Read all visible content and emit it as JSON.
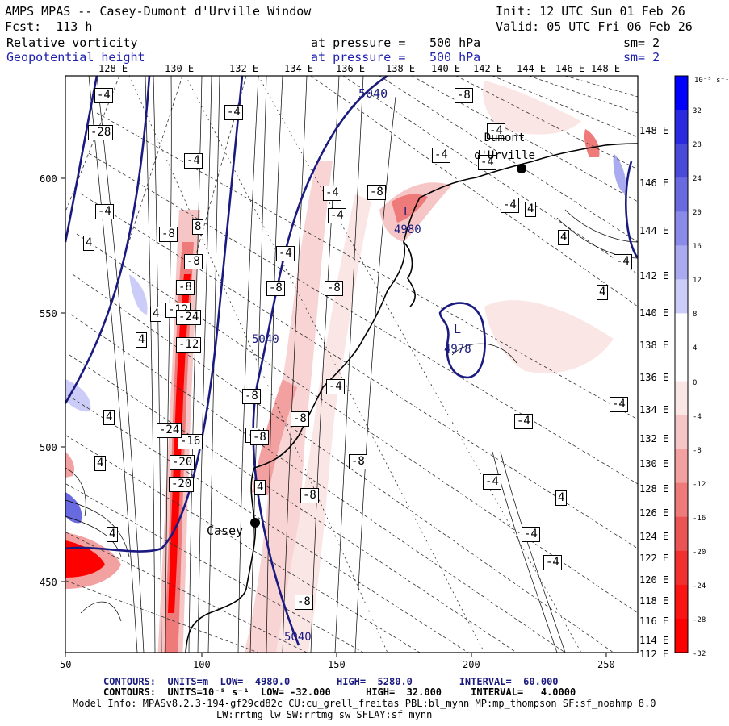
{
  "header": {
    "title": "AMPS MPAS -- Casey-Dumont d'Urville Window",
    "init": "Init: 12 UTC Sun 01 Feb 26",
    "fcst": "Fcst:  113 h",
    "valid": "Valid: 05 UTC Fri 06 Feb 26",
    "field1": {
      "name": "Relative vorticity",
      "pressure_label": "at pressure =",
      "pressure_value": "500 hPa",
      "sm": "sm= 2"
    },
    "field2": {
      "name": "Geopotential height",
      "pressure_label": "at pressure =",
      "pressure_value": "500 hPa",
      "sm": "sm= 2"
    }
  },
  "map": {
    "top_longitudes": [
      "128 E",
      "130 E",
      "132 E",
      "134 E",
      "136 E",
      "138 E",
      "140 E",
      "142 E",
      "144 E",
      "146 E",
      "148 E"
    ],
    "right_longitudes": [
      "148 E",
      "146 E",
      "144 E",
      "142 E",
      "140 E",
      "138 E",
      "136 E",
      "134 E",
      "132 E",
      "130 E",
      "128 E",
      "126 E",
      "124 E",
      "122 E",
      "120 E",
      "118 E",
      "116 E",
      "114 E",
      "112 E"
    ],
    "left_ticks": [
      "600",
      "550",
      "500",
      "450"
    ],
    "bottom_ticks": [
      "50",
      "100",
      "150",
      "200",
      "250"
    ],
    "stations": [
      {
        "name": "Casey"
      },
      {
        "name": "Dumont d'Urville"
      }
    ],
    "height_labels": [
      "5040",
      "5040",
      "5040",
      "4980",
      "4978"
    ],
    "low_labels": [
      "L",
      "L"
    ],
    "vorticity_labels": [
      "-4",
      "-4",
      "-4",
      "-4",
      "-8",
      "-8",
      "-8",
      "-12",
      "-12",
      "-16",
      "-20",
      "-20",
      "-24",
      "-24",
      "-28",
      "4",
      "4",
      "4",
      "8",
      "-4",
      "-8",
      "-4",
      "-4",
      "-8",
      "-4",
      "-4",
      "4",
      "-4",
      "-8",
      "-4",
      "-4",
      "-4",
      "-4",
      "-8",
      "-8",
      "-8",
      "-8",
      "-8",
      "-4",
      "-4",
      "4",
      "-8",
      "-4",
      "-4",
      "4",
      "4",
      "-4",
      "-8",
      "4",
      "4",
      "4",
      "4"
    ],
    "colors": {
      "navy_contour": "#1a1a80",
      "positive_max": "#0000ff",
      "negative_max": "#ff0000"
    }
  },
  "colorbar": {
    "unit": "10⁻⁵ s⁻¹",
    "labels": [
      "32",
      "28",
      "24",
      "20",
      "16",
      "12",
      "8",
      "4",
      "0",
      "-4",
      "-8",
      "-12",
      "-16",
      "-20",
      "-24",
      "-28",
      "-32"
    ],
    "colors": [
      "#0000ff",
      "#2a2ae0",
      "#4a4ad8",
      "#6a6ae0",
      "#8a8ae8",
      "#aaaaf0",
      "#ccccf8",
      "#ffffff",
      "#ffffff",
      "#fbe6e6",
      "#f6c6c6",
      "#f2a0a0",
      "#ee7a7a",
      "#ea5454",
      "#f23030",
      "#fa1414",
      "#ff0000"
    ]
  },
  "footer": {
    "contours1": "CONTOURS:  UNITS=m  LOW=  4980.0        HIGH=  5280.0        INTERVAL=  60.000",
    "contours2": "CONTOURS:  UNITS=10⁻⁵ s⁻¹  LOW= -32.000      HIGH=  32.000     INTERVAL=   4.0000",
    "model1": "Model Info: MPASv8.2.3-194-gf29cd82c CU:cu_grell_freitas PBL:bl_mynn MP:mp_thompson SF:sf_noahmp 8.0",
    "model2": "LW:rrtmg_lw SW:rrtmg_sw SFLAY:sf_mynn"
  }
}
